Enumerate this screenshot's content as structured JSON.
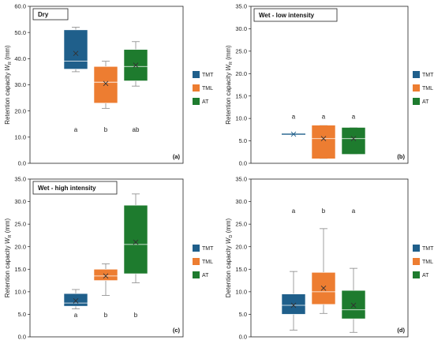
{
  "colors": {
    "TMT": "#1f5f8b",
    "TML": "#ed7d31",
    "AT": "#1e7b2e"
  },
  "chart_data": [
    {
      "type": "box",
      "title": "Dry",
      "panel_label": "(a)",
      "ylabel": "Retention capacity W_R (mm)",
      "ylabel_main": "Retention capacity ",
      "ylabel_var": "W",
      "ylabel_sub": "R",
      "ylabel_unit": " (mm)",
      "ylim": [
        0,
        60
      ],
      "yticks": [
        "0.0",
        "10.0",
        "20.0",
        "30.0",
        "40.0",
        "50.0",
        "60.0"
      ],
      "ytick_values": [
        0,
        10,
        20,
        30,
        40,
        50,
        60
      ],
      "legend": [
        "TMT",
        "TML",
        "AT"
      ],
      "series": [
        {
          "name": "TMT",
          "min": 35,
          "q1": 36,
          "median": 39,
          "q3": 51,
          "max": 52,
          "mean": 42,
          "letter": "a"
        },
        {
          "name": "TML",
          "min": 21,
          "q1": 23,
          "median": 31,
          "q3": 37,
          "max": 39,
          "mean": 30.5,
          "letter": "b"
        },
        {
          "name": "AT",
          "min": 29.5,
          "q1": 31.5,
          "median": 37,
          "q3": 43.5,
          "max": 46.5,
          "mean": 37.5,
          "letter": "ab"
        }
      ]
    },
    {
      "type": "box",
      "title": "Wet - low intensity",
      "panel_label": "(b)",
      "ylabel": "Retention capacity W_R (mm)",
      "ylabel_main": "Retention capacity ",
      "ylabel_var": "W",
      "ylabel_sub": "R",
      "ylabel_unit": " (mm)",
      "ylim": [
        0,
        35
      ],
      "yticks": [
        "0.0",
        "5.0",
        "10.0",
        "15.0",
        "20.0",
        "25.0",
        "30.0",
        "35.0"
      ],
      "ytick_values": [
        0,
        5,
        10,
        15,
        20,
        25,
        30,
        35
      ],
      "legend": [
        "TMT",
        "TML",
        "AT"
      ],
      "series": [
        {
          "name": "TMT",
          "min": 6.5,
          "q1": 6.5,
          "median": 6.5,
          "q3": 6.5,
          "max": 6.5,
          "mean": 6.5,
          "letter": "a"
        },
        {
          "name": "TML",
          "min": 1,
          "q1": 1,
          "median": 5.5,
          "q3": 8.5,
          "max": 8.5,
          "mean": 5.5,
          "letter": "a"
        },
        {
          "name": "AT",
          "min": 2,
          "q1": 2,
          "median": 5.5,
          "q3": 8,
          "max": 8,
          "mean": 5.5,
          "letter": "a"
        }
      ]
    },
    {
      "type": "box",
      "title": "Wet - high intensity",
      "panel_label": "(c)",
      "ylabel": "Retention capacity W_R (mm)",
      "ylabel_main": "Retention capacity ",
      "ylabel_var": "W",
      "ylabel_sub": "R",
      "ylabel_unit": " (mm)",
      "ylim": [
        0,
        35
      ],
      "yticks": [
        "0.0",
        "5.0",
        "10.0",
        "15.0",
        "20.0",
        "25.0",
        "30.0",
        "35.0"
      ],
      "ytick_values": [
        0,
        5,
        10,
        15,
        20,
        25,
        30,
        35
      ],
      "legend": [
        "TMT",
        "TML",
        "AT"
      ],
      "series": [
        {
          "name": "TMT",
          "min": 6.2,
          "q1": 6.8,
          "median": 7.5,
          "q3": 9.6,
          "max": 10.5,
          "mean": 8,
          "letter": "a"
        },
        {
          "name": "TML",
          "min": 9.2,
          "q1": 12.5,
          "median": 13.5,
          "q3": 15,
          "max": 16.2,
          "mean": 13.5,
          "letter": "b"
        },
        {
          "name": "AT",
          "min": 12,
          "q1": 14,
          "median": 20.5,
          "q3": 29.2,
          "max": 31.7,
          "mean": 21,
          "letter": "b"
        }
      ]
    },
    {
      "type": "box",
      "title": "",
      "panel_label": "(d)",
      "ylabel": "Detention capacity W_D (mm)",
      "ylabel_main": "Detention capacity ",
      "ylabel_var": "W",
      "ylabel_sub": "D",
      "ylabel_unit": " (mm)",
      "ylim": [
        0,
        35
      ],
      "yticks": [
        "0.0",
        "5.0",
        "10.0",
        "15.0",
        "20.0",
        "25.0",
        "30.0",
        "35.0"
      ],
      "ytick_values": [
        0,
        5,
        10,
        15,
        20,
        25,
        30,
        35
      ],
      "legend": [
        "TMT",
        "TML",
        "AT"
      ],
      "series": [
        {
          "name": "TMT",
          "min": 1.5,
          "q1": 5,
          "median": 7,
          "q3": 9.5,
          "max": 14.5,
          "mean": 7,
          "letter": "a"
        },
        {
          "name": "TML",
          "min": 5.2,
          "q1": 7.2,
          "median": 10,
          "q3": 14.3,
          "max": 24,
          "mean": 10.8,
          "letter": "b"
        },
        {
          "name": "AT",
          "min": 1,
          "q1": 4,
          "median": 6,
          "q3": 10.3,
          "max": 15.2,
          "mean": 7,
          "letter": "a"
        }
      ]
    }
  ]
}
